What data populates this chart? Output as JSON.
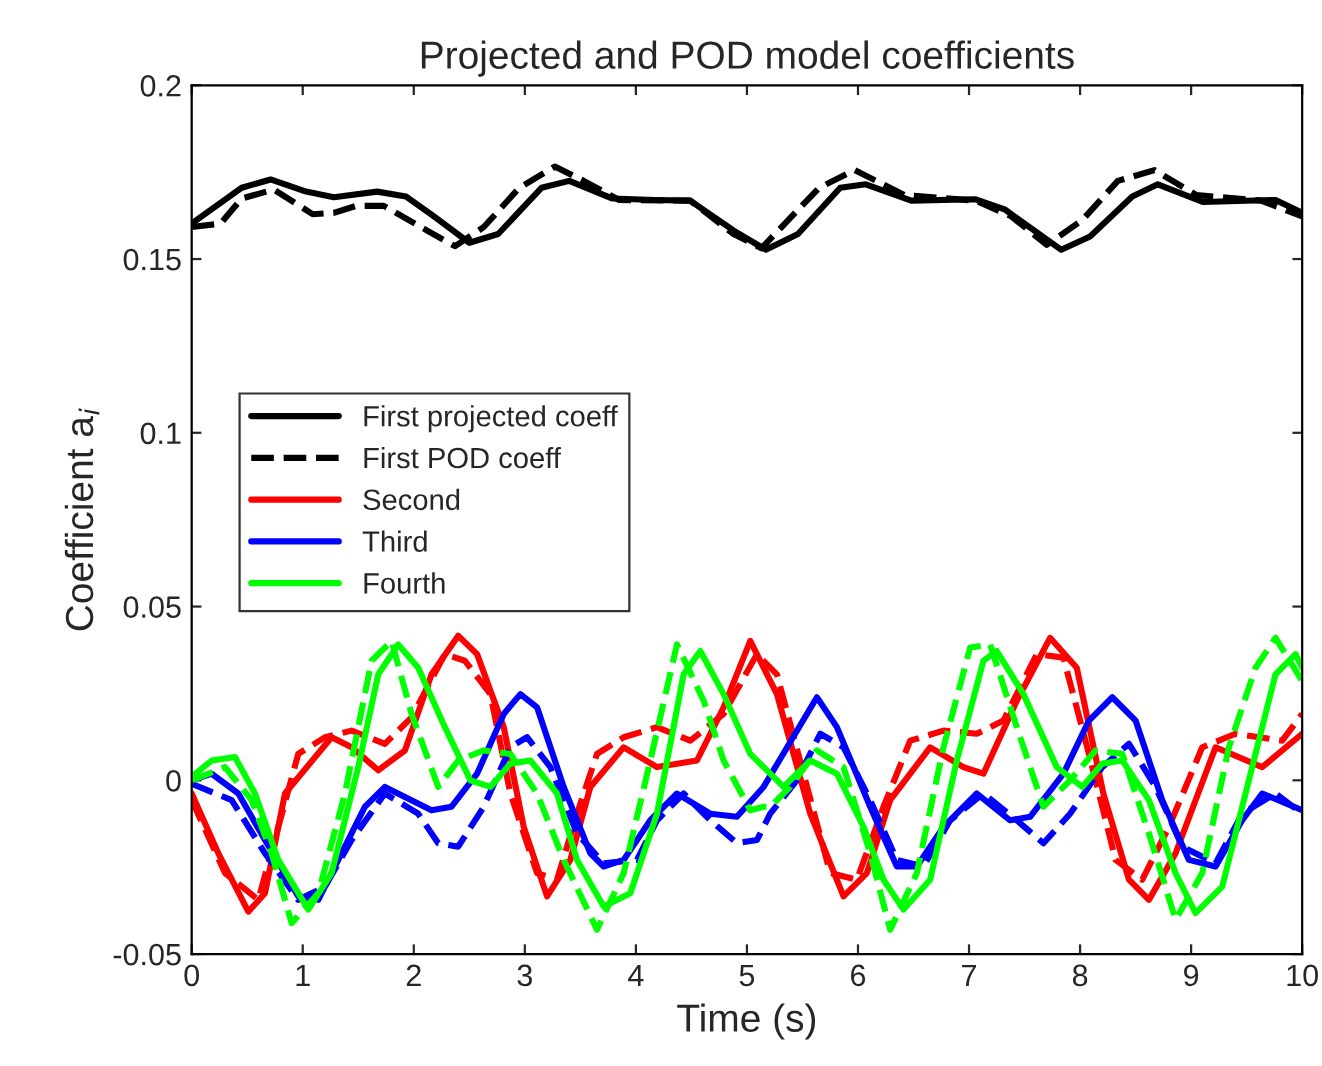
{
  "chart_data": {
    "type": "line",
    "title": "Projected and POD model coefficients",
    "xlabel": "Time (s)",
    "ylabel": "Coefficient a$_{i}$",
    "xlim": [
      0,
      10
    ],
    "xticks": [
      0,
      1,
      2,
      3,
      4,
      5,
      6,
      7,
      8,
      9,
      10
    ],
    "ylim": [
      -0.05,
      0.2
    ],
    "yticks": [
      -0.05,
      0,
      0.05,
      0.1,
      0.15,
      0.2
    ],
    "grid": false,
    "legend": "center left",
    "marker": "none",
    "series": [
      {
        "name": "First projected coeff",
        "color": "#000000",
        "line_style": "solid",
        "x": [
          0,
          0.45,
          0.71,
          1.03,
          1.28,
          1.67,
          1.93,
          2.18,
          2.5,
          2.76,
          3.15,
          3.4,
          3.79,
          4.17,
          4.49,
          4.88,
          5.17,
          5.46,
          5.84,
          6.07,
          6.48,
          7.06,
          7.32,
          7.83,
          8.09,
          8.47,
          8.7,
          9.11,
          9.76,
          10
        ],
        "values": [
          0.1602,
          0.1705,
          0.1729,
          0.1694,
          0.1678,
          0.1694,
          0.168,
          0.1623,
          0.1547,
          0.1572,
          0.1705,
          0.1725,
          0.1674,
          0.167,
          0.1668,
          0.1582,
          0.1527,
          0.1572,
          0.1705,
          0.1715,
          0.1668,
          0.1672,
          0.1643,
          0.1527,
          0.1565,
          0.168,
          0.1715,
          0.1664,
          0.167,
          0.1633
        ]
      },
      {
        "name": "First POD coeff",
        "color": "#000000",
        "line_style": "dashed",
        "x": [
          0,
          0.26,
          0.45,
          0.74,
          1.09,
          1.28,
          1.48,
          1.73,
          2.12,
          2.37,
          2.63,
          2.95,
          3.27,
          3.53,
          3.85,
          4.49,
          4.88,
          5.13,
          5.65,
          5.97,
          6.42,
          7.06,
          7.38,
          7.7,
          8.02,
          8.34,
          8.67,
          9.05,
          9.63,
          10
        ],
        "values": [
          0.1592,
          0.1602,
          0.1674,
          0.17,
          0.1629,
          0.1633,
          0.1653,
          0.1653,
          0.1582,
          0.1537,
          0.1592,
          0.1705,
          0.1766,
          0.1725,
          0.167,
          0.1668,
          0.1572,
          0.1531,
          0.1705,
          0.1756,
          0.1684,
          0.1668,
          0.1623,
          0.1541,
          0.1612,
          0.1725,
          0.1756,
          0.1684,
          0.1668,
          0.1623
        ]
      },
      {
        "name": "Second",
        "color": "#ff0000",
        "line_style": "solid",
        "x": [
          0,
          0.24,
          0.51,
          0.66,
          0.84,
          1.26,
          1.44,
          1.68,
          1.92,
          2.16,
          2.4,
          2.57,
          2.81,
          2.99,
          3.2,
          3.41,
          3.59,
          3.89,
          4.19,
          4.55,
          4.79,
          5.03,
          5.27,
          5.57,
          5.87,
          6.08,
          6.29,
          6.65,
          6.95,
          7.13,
          7.43,
          7.73,
          7.97,
          8.21,
          8.44,
          8.62,
          8.86,
          9.22,
          9.64,
          10
        ],
        "values": [
          -0.0038,
          -0.021,
          -0.0378,
          -0.0325,
          -0.0038,
          0.0124,
          0.0095,
          0.0029,
          0.0086,
          0.0305,
          0.0416,
          0.0363,
          0.0153,
          -0.0134,
          -0.0334,
          -0.0229,
          -0.0019,
          0.0095,
          0.0038,
          0.0057,
          0.021,
          0.0401,
          0.0248,
          -0.0096,
          -0.0334,
          -0.0267,
          -0.0057,
          0.0095,
          0.0038,
          0.0019,
          0.0229,
          0.041,
          0.0324,
          -0.0038,
          -0.0286,
          -0.0344,
          -0.021,
          0.0095,
          0.0038,
          0.0134
        ]
      },
      {
        "color": "#ff0000",
        "line_style": "dashed",
        "x": [
          0,
          0.3,
          0.6,
          0.78,
          0.96,
          1.2,
          1.44,
          1.74,
          1.98,
          2.28,
          2.46,
          2.69,
          2.87,
          3.11,
          3.29,
          3.47,
          3.65,
          3.89,
          4.19,
          4.49,
          4.79,
          5.09,
          5.27,
          5.51,
          5.75,
          5.99,
          6.23,
          6.47,
          6.77,
          7.07,
          7.31,
          7.61,
          7.85,
          8.08,
          8.32,
          8.56,
          8.8,
          9.1,
          9.4,
          9.82,
          10.0
        ],
        "values": [
          -0.0057,
          -0.0267,
          -0.0344,
          -0.0134,
          0.0076,
          0.0124,
          0.0143,
          0.0105,
          0.0181,
          0.0363,
          0.0344,
          0.0248,
          -0.0038,
          -0.0267,
          -0.0286,
          -0.0096,
          0.0076,
          0.0124,
          0.0153,
          0.0114,
          0.0191,
          0.0363,
          0.0305,
          0.0019,
          -0.0267,
          -0.0286,
          -0.0076,
          0.0114,
          0.0143,
          0.0134,
          0.0172,
          0.0363,
          0.0353,
          0.0076,
          -0.0229,
          -0.0286,
          -0.0134,
          0.0095,
          0.0134,
          0.0114,
          0.0191
        ]
      },
      {
        "name": "Third",
        "color": "#0000ff",
        "line_style": "solid",
        "x": [
          0,
          0.18,
          0.42,
          0.66,
          0.96,
          1.14,
          1.32,
          1.56,
          1.74,
          1.92,
          2.16,
          2.34,
          2.57,
          2.81,
          2.96,
          3.11,
          3.35,
          3.59,
          3.71,
          3.89,
          4.13,
          4.37,
          4.67,
          4.91,
          5.15,
          5.63,
          5.81,
          6.11,
          6.35,
          6.53,
          6.77,
          7.07,
          7.37,
          7.55,
          7.85,
          8.08,
          8.29,
          8.5,
          8.74,
          8.98,
          9.22,
          9.46,
          9.64,
          10.0
        ],
        "values": [
          0.0,
          0.0019,
          -0.0038,
          -0.0172,
          -0.0334,
          -0.0344,
          -0.0229,
          -0.0076,
          -0.0019,
          -0.0048,
          -0.0086,
          -0.0076,
          0.0019,
          0.0191,
          0.0248,
          0.021,
          -0.0019,
          -0.021,
          -0.0248,
          -0.0229,
          -0.0115,
          -0.0038,
          -0.0096,
          -0.0105,
          -0.0019,
          0.0239,
          0.0153,
          -0.0076,
          -0.0248,
          -0.0248,
          -0.0134,
          -0.0038,
          -0.0115,
          -0.0105,
          0.0019,
          0.0172,
          0.0239,
          0.0172,
          -0.0057,
          -0.0229,
          -0.0248,
          -0.0115,
          -0.0038,
          -0.0086
        ]
      },
      {
        "color": "#0000ff",
        "line_style": "dashed",
        "x": [
          0,
          0.36,
          0.66,
          0.96,
          1.2,
          1.44,
          1.74,
          2.04,
          2.22,
          2.4,
          2.63,
          2.87,
          3.02,
          3.23,
          3.47,
          3.71,
          4.01,
          4.19,
          4.43,
          4.67,
          4.91,
          5.09,
          5.21,
          5.45,
          5.66,
          5.87,
          6.11,
          6.35,
          6.59,
          6.83,
          7.13,
          7.43,
          7.67,
          7.91,
          8.2,
          8.44,
          8.68,
          8.92,
          9.22,
          9.46,
          9.76,
          10.0
        ],
        "values": [
          -0.001,
          -0.0057,
          -0.021,
          -0.0344,
          -0.0306,
          -0.0172,
          -0.0038,
          -0.0096,
          -0.0181,
          -0.0191,
          -0.0076,
          0.0095,
          0.0124,
          0.0038,
          -0.0153,
          -0.0239,
          -0.0229,
          -0.0115,
          -0.0038,
          -0.0115,
          -0.0181,
          -0.0172,
          -0.0096,
          0.0,
          0.0134,
          0.0095,
          -0.0057,
          -0.0229,
          -0.0248,
          -0.0115,
          -0.0038,
          -0.0115,
          -0.0181,
          -0.0096,
          0.0038,
          0.0105,
          -0.0019,
          -0.0191,
          -0.0239,
          -0.0096,
          -0.0038,
          -0.0096
        ]
      },
      {
        "name": "Fourth",
        "color": "#00ff00",
        "line_style": "solid",
        "x": [
          0,
          0.18,
          0.39,
          0.57,
          0.78,
          1.05,
          1.26,
          1.5,
          1.68,
          1.86,
          2.04,
          2.28,
          2.51,
          2.69,
          2.87,
          3.05,
          3.29,
          3.47,
          3.71,
          3.95,
          4.19,
          4.43,
          4.58,
          4.79,
          5.03,
          5.33,
          5.57,
          5.81,
          6.05,
          6.23,
          6.41,
          6.65,
          6.89,
          7.13,
          7.25,
          7.49,
          7.79,
          8.02,
          8.2,
          8.38,
          8.62,
          8.86,
          9.04,
          9.28,
          9.52,
          9.76,
          9.94,
          10.0
        ],
        "values": [
          0.001,
          0.0057,
          0.0067,
          -0.0038,
          -0.0229,
          -0.0372,
          -0.0267,
          0.0038,
          0.0305,
          0.0391,
          0.0324,
          0.0153,
          0.0,
          -0.0019,
          0.0048,
          0.0057,
          -0.0038,
          -0.0229,
          -0.0363,
          -0.0325,
          -0.0096,
          0.0305,
          0.0372,
          0.0248,
          0.0076,
          -0.0019,
          0.0057,
          0.0019,
          -0.0134,
          -0.0286,
          -0.0372,
          -0.0286,
          0.0057,
          0.0344,
          0.0372,
          0.0248,
          0.0038,
          -0.0019,
          0.0048,
          0.0057,
          -0.0057,
          -0.0267,
          -0.0382,
          -0.0306,
          0.0,
          0.0305,
          0.0363,
          0.0324
        ]
      },
      {
        "color": "#00ff00",
        "line_style": "dashed",
        "x": [
          0,
          0.3,
          0.54,
          0.72,
          0.9,
          1.14,
          1.38,
          1.62,
          1.8,
          1.98,
          2.22,
          2.4,
          2.63,
          2.87,
          3.11,
          3.35,
          3.65,
          3.89,
          4.13,
          4.37,
          4.61,
          4.79,
          5.03,
          5.15,
          5.21,
          5.39,
          5.63,
          5.87,
          6.11,
          6.29,
          6.53,
          6.77,
          7.01,
          7.19,
          7.43,
          7.67,
          7.91,
          8.14,
          8.38,
          8.62,
          8.86,
          9.1,
          9.34,
          9.58,
          9.76,
          10.0
        ],
        "values": [
          0.0,
          0.0038,
          -0.0057,
          -0.021,
          -0.0411,
          -0.0325,
          -0.0038,
          0.0344,
          0.0401,
          0.0191,
          -0.0019,
          0.0057,
          0.0086,
          0.0076,
          -0.0038,
          -0.0229,
          -0.043,
          -0.0267,
          0.0057,
          0.0391,
          0.0229,
          0.0057,
          -0.0086,
          -0.0076,
          -0.0076,
          -0.0019,
          0.0086,
          0.0038,
          -0.021,
          -0.043,
          -0.0267,
          0.0095,
          0.0382,
          0.0391,
          0.0153,
          -0.0076,
          0.0,
          0.0086,
          0.0076,
          -0.0153,
          -0.0401,
          -0.0267,
          0.0095,
          0.0324,
          0.041,
          0.0286
        ]
      }
    ]
  }
}
